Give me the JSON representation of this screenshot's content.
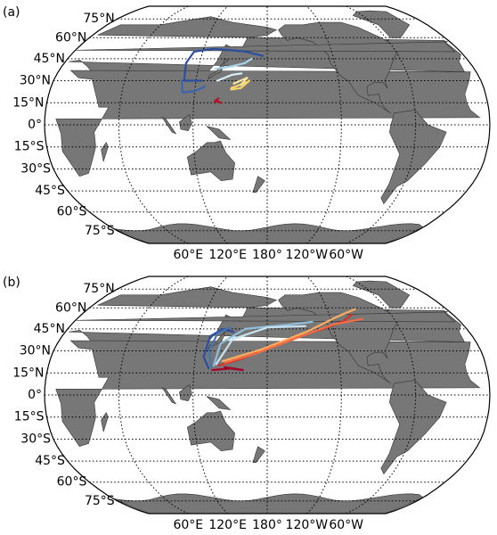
{
  "panels": [
    {
      "label": "(a)",
      "lat_labels": [
        "75°N",
        "60°N",
        "45°N",
        "30°N",
        "15°N",
        "0°",
        "15°S",
        "30°S",
        "45°S",
        "60°S",
        "75°S"
      ],
      "lon_labels": [
        "60°E",
        "120°E",
        "180°",
        "120°W",
        "60°W"
      ]
    },
    {
      "label": "(b)",
      "lat_labels": [
        "75°N",
        "60°N",
        "45°N",
        "30°N",
        "15°N",
        "0°",
        "15°S",
        "30°S",
        "45°S",
        "60°S",
        "75°S"
      ],
      "lon_labels": [
        "60°E",
        "120°E",
        "180°",
        "120°W",
        "60°W"
      ]
    }
  ]
}
